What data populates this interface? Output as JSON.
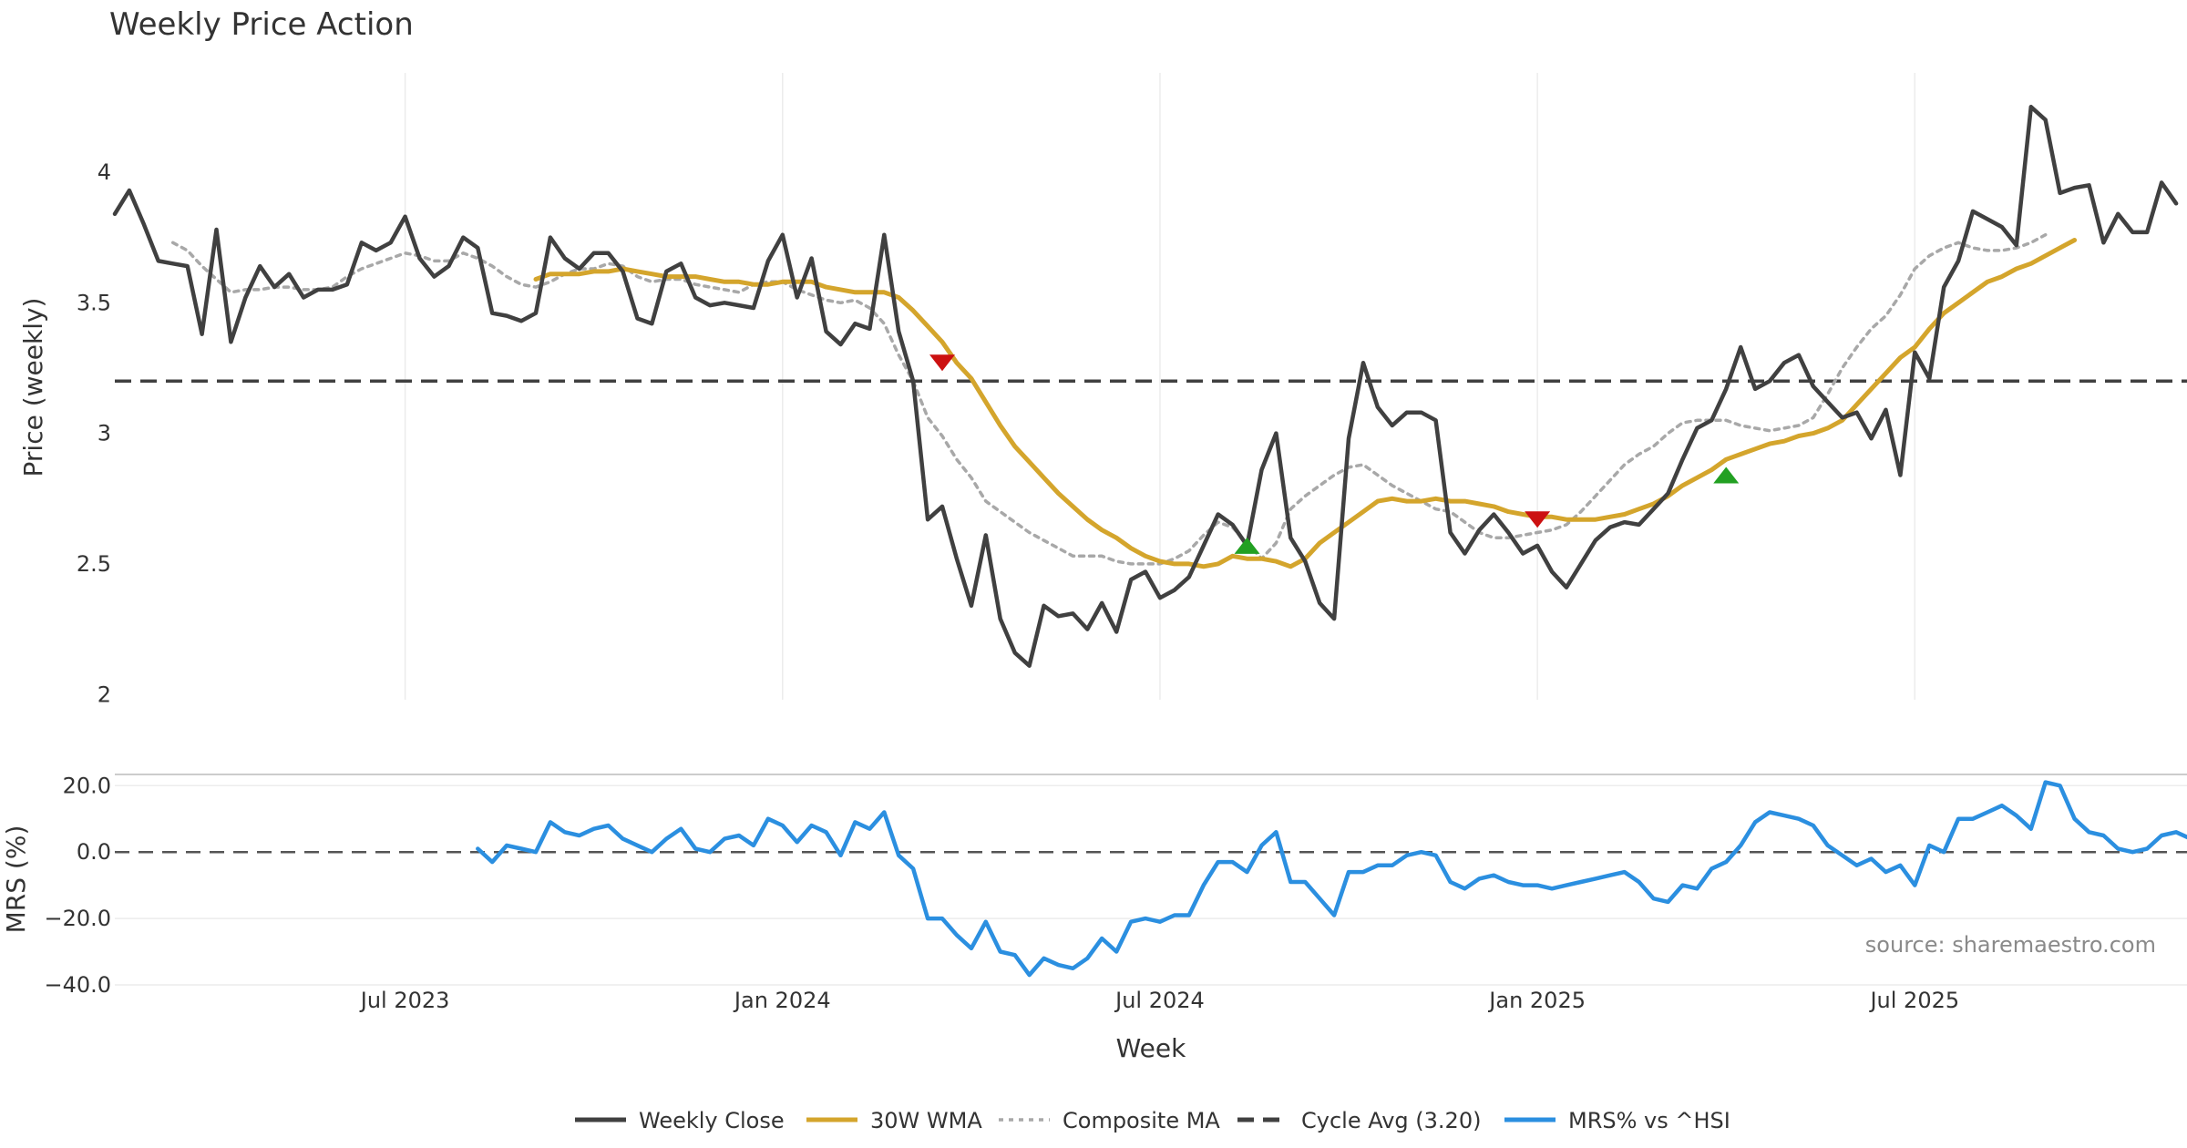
{
  "chart_data": {
    "type": "line",
    "title": "Weekly Price Action",
    "xlabel": "Week",
    "x_ticks": [
      "Jul 2023",
      "Jan 2024",
      "Jul 2024",
      "Jan 2025",
      "Jul 2025"
    ],
    "source": "source: sharemaestro.com",
    "price_panel": {
      "ylabel": "Price (weekly)",
      "ylim": [
        1.98,
        4.38
      ],
      "y_ticks": [
        "2",
        "2.5",
        "3",
        "3.5",
        "4"
      ],
      "y_tick_values": [
        2,
        2.5,
        3,
        3.5,
        4
      ],
      "x_start": 0,
      "series": [
        {
          "name": "Weekly Close",
          "color": "#404040",
          "style": "solid",
          "start": 0,
          "values": [
            3.84,
            3.93,
            3.8,
            3.66,
            3.65,
            3.64,
            3.38,
            3.78,
            3.35,
            3.52,
            3.64,
            3.56,
            3.61,
            3.52,
            3.55,
            3.55,
            3.57,
            3.73,
            3.7,
            3.73,
            3.83,
            3.67,
            3.6,
            3.64,
            3.75,
            3.71,
            3.46,
            3.45,
            3.43,
            3.46,
            3.75,
            3.67,
            3.63,
            3.69,
            3.69,
            3.62,
            3.44,
            3.42,
            3.62,
            3.65,
            3.52,
            3.49,
            3.5,
            3.49,
            3.48,
            3.66,
            3.76,
            3.52,
            3.67,
            3.39,
            3.34,
            3.42,
            3.4,
            3.76,
            3.39,
            3.2,
            2.67,
            2.72,
            2.52,
            2.34,
            2.61,
            2.29,
            2.16,
            2.11,
            2.34,
            2.3,
            2.31,
            2.25,
            2.35,
            2.24,
            2.44,
            2.47,
            2.37,
            2.4,
            2.45,
            2.57,
            2.69,
            2.65,
            2.57,
            2.86,
            3.0,
            2.6,
            2.51,
            2.35,
            2.29,
            2.98,
            3.27,
            3.1,
            3.03,
            3.08,
            3.08,
            3.05,
            2.62,
            2.54,
            2.63,
            2.69,
            2.62,
            2.54,
            2.57,
            2.47,
            2.41,
            2.5,
            2.59,
            2.64,
            2.66,
            2.65,
            2.71,
            2.77,
            2.9,
            3.02,
            3.05,
            3.17,
            3.33,
            3.17,
            3.2,
            3.27,
            3.3,
            3.18,
            3.12,
            3.06,
            3.08,
            2.98,
            3.09,
            2.84,
            3.31,
            3.21,
            3.56,
            3.66,
            3.85,
            3.82,
            3.79,
            3.72,
            4.25,
            4.2,
            3.92,
            3.94,
            3.95,
            3.73,
            3.84,
            3.77,
            3.77,
            3.96,
            3.88
          ]
        },
        {
          "name": "30W WMA",
          "color": "#d4a52c",
          "style": "solid",
          "start": 29,
          "values": [
            3.59,
            3.61,
            3.61,
            3.61,
            3.62,
            3.62,
            3.63,
            3.62,
            3.61,
            3.6,
            3.6,
            3.6,
            3.59,
            3.58,
            3.58,
            3.57,
            3.57,
            3.58,
            3.58,
            3.58,
            3.56,
            3.55,
            3.54,
            3.54,
            3.54,
            3.52,
            3.47,
            3.41,
            3.35,
            3.27,
            3.21,
            3.12,
            3.03,
            2.95,
            2.89,
            2.83,
            2.77,
            2.72,
            2.67,
            2.63,
            2.6,
            2.56,
            2.53,
            2.51,
            2.5,
            2.5,
            2.49,
            2.5,
            2.53,
            2.52,
            2.52,
            2.51,
            2.49,
            2.52,
            2.58,
            2.62,
            2.66,
            2.7,
            2.74,
            2.75,
            2.74,
            2.74,
            2.75,
            2.74,
            2.74,
            2.73,
            2.72,
            2.7,
            2.69,
            2.68,
            2.68,
            2.67,
            2.67,
            2.67,
            2.68,
            2.69,
            2.71,
            2.73,
            2.76,
            2.8,
            2.83,
            2.86,
            2.9,
            2.92,
            2.94,
            2.96,
            2.97,
            2.99,
            3.0,
            3.02,
            3.05,
            3.11,
            3.17,
            3.23,
            3.29,
            3.33,
            3.4,
            3.46,
            3.5,
            3.54,
            3.58,
            3.6,
            3.63,
            3.65,
            3.68,
            3.71,
            3.74
          ]
        },
        {
          "name": "Composite MA",
          "color": "#a8a8a8",
          "style": "dotted",
          "start": 4,
          "values": [
            3.73,
            3.7,
            3.64,
            3.59,
            3.54,
            3.55,
            3.55,
            3.56,
            3.56,
            3.55,
            3.55,
            3.56,
            3.6,
            3.63,
            3.65,
            3.67,
            3.69,
            3.68,
            3.66,
            3.66,
            3.69,
            3.67,
            3.64,
            3.6,
            3.57,
            3.56,
            3.58,
            3.61,
            3.63,
            3.63,
            3.65,
            3.64,
            3.6,
            3.58,
            3.59,
            3.59,
            3.57,
            3.56,
            3.55,
            3.54,
            3.57,
            3.58,
            3.58,
            3.55,
            3.53,
            3.51,
            3.5,
            3.51,
            3.48,
            3.42,
            3.3,
            3.2,
            3.06,
            2.99,
            2.9,
            2.83,
            2.74,
            2.7,
            2.66,
            2.62,
            2.59,
            2.56,
            2.53,
            2.53,
            2.53,
            2.51,
            2.5,
            2.5,
            2.5,
            2.52,
            2.55,
            2.61,
            2.66,
            2.64,
            2.58,
            2.52,
            2.58,
            2.71,
            2.76,
            2.8,
            2.84,
            2.87,
            2.88,
            2.84,
            2.8,
            2.77,
            2.74,
            2.71,
            2.7,
            2.66,
            2.62,
            2.6,
            2.6,
            2.61,
            2.62,
            2.63,
            2.65,
            2.7,
            2.76,
            2.82,
            2.88,
            2.92,
            2.95,
            3.0,
            3.04,
            3.05,
            3.05,
            3.05,
            3.03,
            3.02,
            3.01,
            3.02,
            3.03,
            3.06,
            3.15,
            3.25,
            3.33,
            3.4,
            3.45,
            3.53,
            3.63,
            3.68,
            3.71,
            3.73,
            3.71,
            3.7,
            3.7,
            3.71,
            3.73,
            3.76
          ]
        }
      ],
      "reference_line": {
        "name": "Cycle Avg (3.20)",
        "value": 3.2,
        "color": "#404040",
        "style": "dashed"
      },
      "markers": [
        {
          "type": "sell",
          "x": 57,
          "y": 3.27,
          "color": "#cc1111"
        },
        {
          "type": "buy",
          "x": 78,
          "y": 2.57,
          "color": "#22a022"
        },
        {
          "type": "sell",
          "x": 98,
          "y": 2.67,
          "color": "#cc1111"
        },
        {
          "type": "buy",
          "x": 111,
          "y": 2.84,
          "color": "#22a022"
        }
      ]
    },
    "mrs_panel": {
      "ylabel": "MRS (%)",
      "ylim": [
        -40,
        22
      ],
      "y_ticks": [
        "20.0",
        "0.0",
        "−20.0",
        "−40.0"
      ],
      "y_tick_values": [
        20,
        0,
        -20,
        -40
      ],
      "zero_line": {
        "value": 0,
        "style": "dashed"
      },
      "series": {
        "name": "MRS% vs ^HSI",
        "color": "#2b8fe0",
        "start": 25,
        "values": [
          1,
          -3,
          2,
          1,
          0,
          9,
          6,
          5,
          7,
          8,
          4,
          2,
          0,
          4,
          7,
          1,
          0,
          4,
          5,
          2,
          10,
          8,
          3,
          8,
          6,
          -1,
          9,
          7,
          12,
          -1,
          -5,
          -20,
          -20,
          -25,
          -29,
          -21,
          -30,
          -31,
          -37,
          -32,
          -34,
          -35,
          -32,
          -26,
          -30,
          -21,
          -20,
          -21,
          -19,
          -19,
          -10,
          -3,
          -3,
          -6,
          2,
          6,
          -9,
          -9,
          -14,
          -19,
          -6,
          -6,
          -4,
          -4,
          -1,
          0,
          -1,
          -9,
          -11,
          -8,
          -7,
          -9,
          -10,
          -10,
          -11,
          -10,
          -9,
          -8,
          -7,
          -6,
          -9,
          -14,
          -15,
          -10,
          -11,
          -5,
          -3,
          2,
          9,
          12,
          11,
          10,
          8,
          2,
          -1,
          -4,
          -2,
          -6,
          -4,
          -10,
          2,
          0,
          10,
          10,
          12,
          14,
          11,
          7,
          21,
          20,
          10,
          6,
          5,
          1,
          0,
          1,
          5,
          6,
          4
        ]
      }
    },
    "legend": {
      "position": "bottom",
      "items": [
        {
          "label": "Weekly Close",
          "color": "#404040",
          "style": "solid"
        },
        {
          "label": "30W WMA",
          "color": "#d4a52c",
          "style": "solid"
        },
        {
          "label": "Composite MA",
          "color": "#a8a8a8",
          "style": "dotted"
        },
        {
          "label": "Cycle Avg (3.20)",
          "color": "#404040",
          "style": "dashed"
        },
        {
          "label": "MRS% vs ^HSI",
          "color": "#2b8fe0",
          "style": "solid"
        }
      ]
    }
  }
}
